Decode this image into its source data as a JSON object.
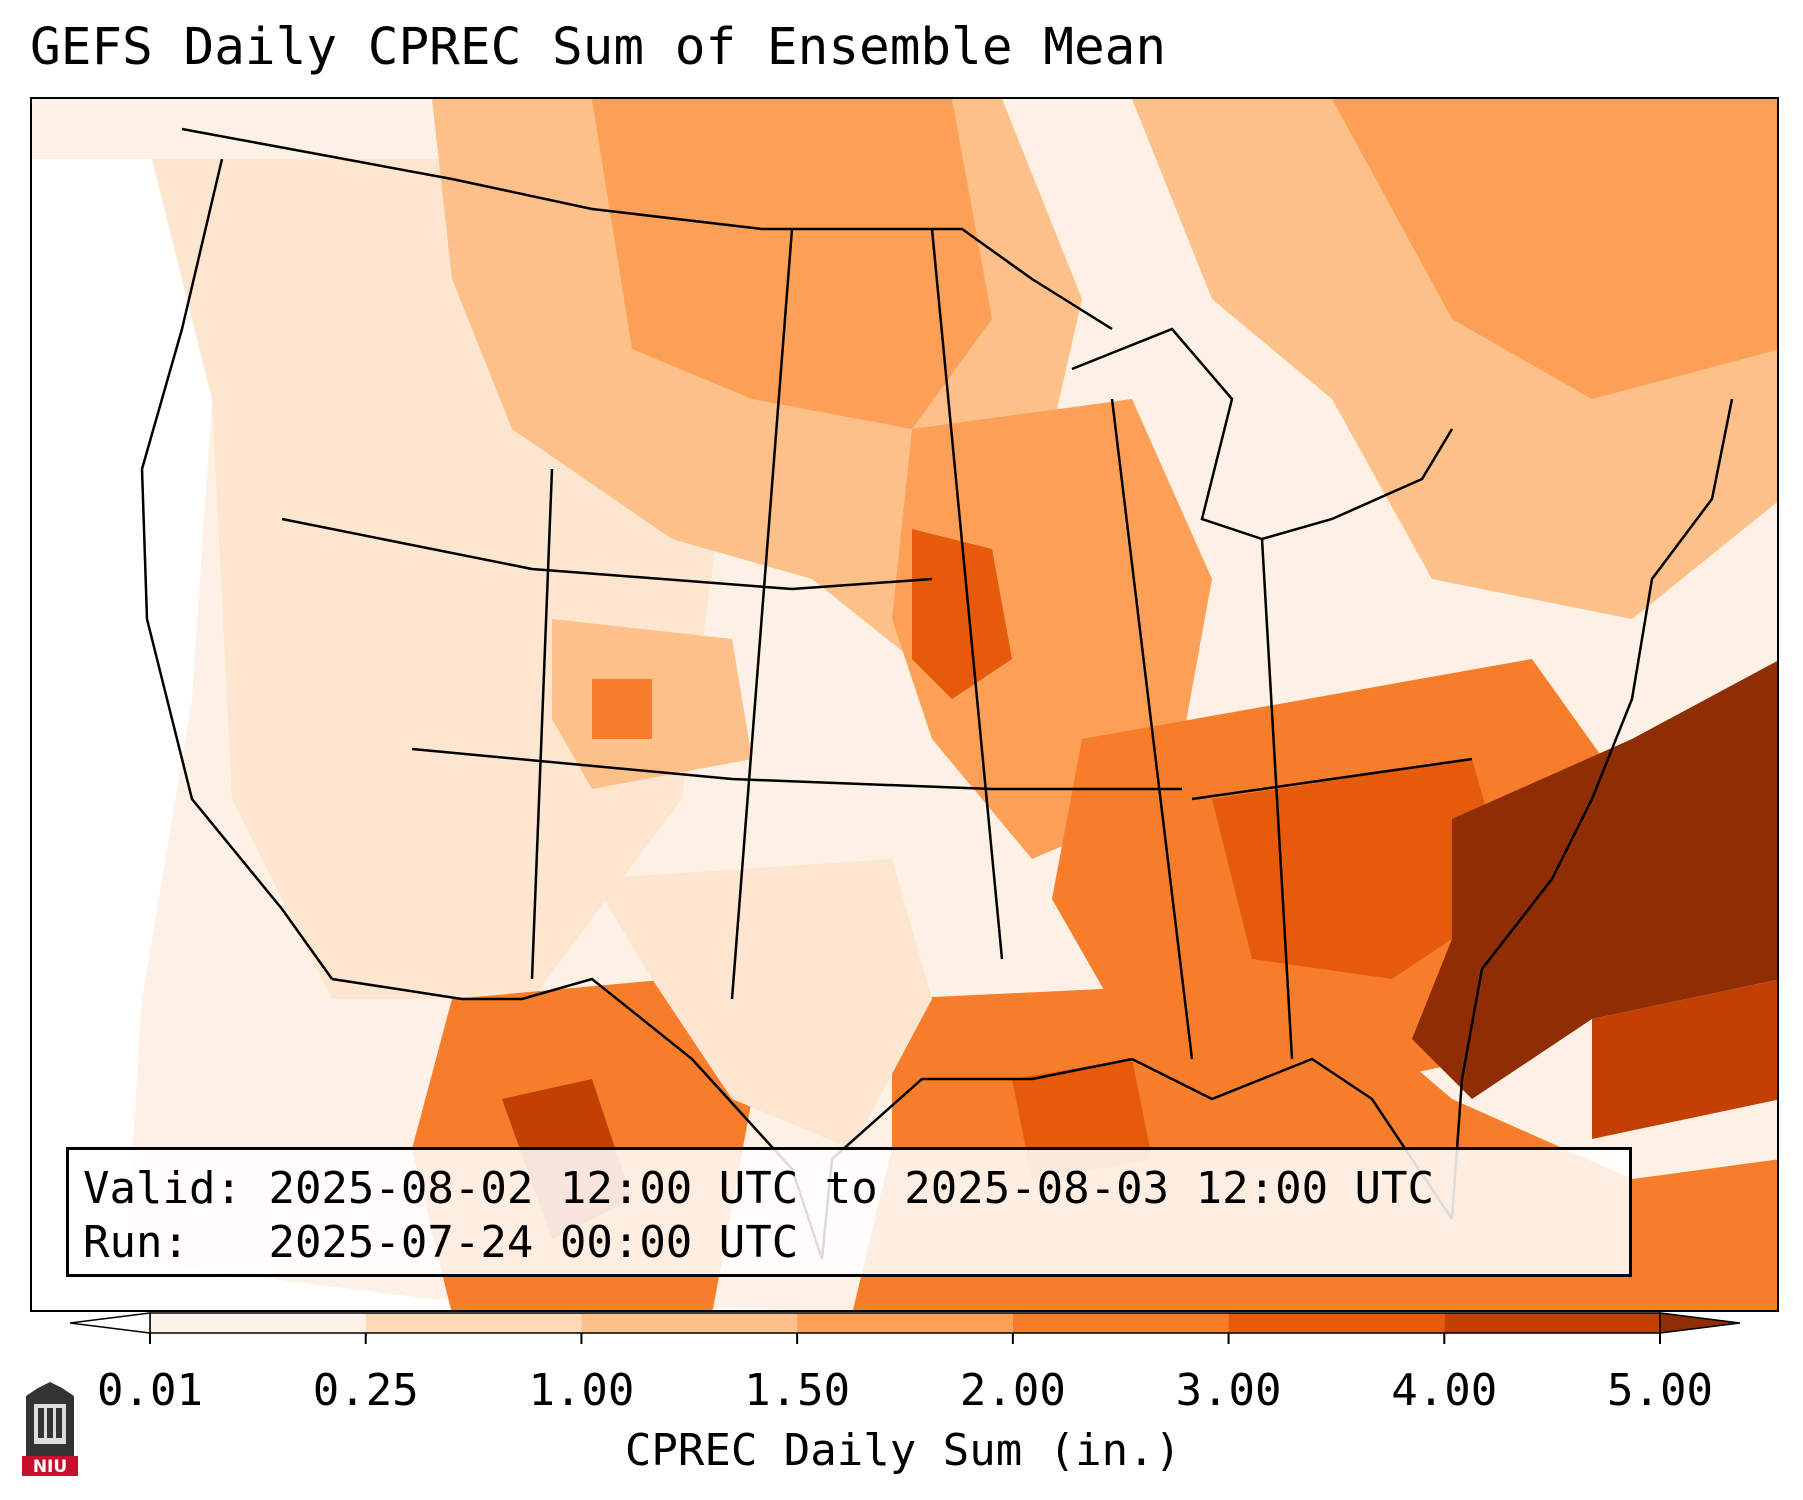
{
  "title": "GEFS Daily CPREC Sum of Ensemble Mean",
  "info": {
    "valid_label": "Valid:",
    "valid_value": "2025-08-02 12:00 UTC to 2025-08-03 12:00 UTC",
    "run_label": "Run:",
    "run_value": "2025-07-24 00:00 UTC"
  },
  "colorbar": {
    "label": "CPREC Daily Sum (in.)",
    "ticks": [
      "0.01",
      "0.25",
      "1.00",
      "1.50",
      "2.00",
      "3.00",
      "4.00",
      "5.00"
    ],
    "colors": [
      "#fff2e6",
      "#fdd9b4",
      "#fdc088",
      "#fda057",
      "#f67d2a",
      "#e55a0b",
      "#c24002",
      "#8f2d04"
    ],
    "extend": "both"
  },
  "map": {
    "region": "Continental United States",
    "fill_colors": {
      "lightest": "#fff2e6",
      "light": "#fdd9b4",
      "medium_light": "#fdc088",
      "medium": "#fda057",
      "medium_dark": "#f67d2a",
      "dark": "#e55a0b",
      "darker": "#c24002",
      "darkest": "#8f2d04"
    }
  },
  "logo": {
    "text": "NIU",
    "icon": "niu-tower-icon"
  }
}
